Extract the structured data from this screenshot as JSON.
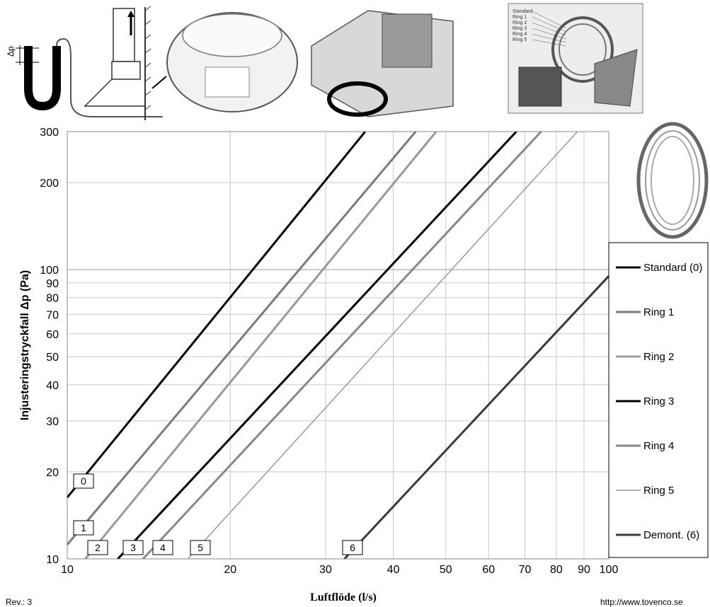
{
  "chart_data": {
    "type": "line",
    "x_scale": "log",
    "y_scale": "log",
    "xlim": [
      10,
      100
    ],
    "ylim": [
      10,
      300
    ],
    "xlabel": "Luftflöde (l/s)",
    "ylabel": "Injusteringstryckfall Δp (Pa)",
    "x_ticks": [
      10,
      20,
      30,
      40,
      50,
      60,
      70,
      80,
      90,
      100
    ],
    "y_ticks": [
      10,
      20,
      30,
      40,
      50,
      60,
      70,
      80,
      90,
      100,
      200,
      300
    ],
    "grid": true,
    "legend_position": "right",
    "series": [
      {
        "name": "Standard (0)",
        "label": "0",
        "color": "#000000",
        "width": 3,
        "points": [
          [
            10,
            16.3
          ],
          [
            35.5,
            300
          ]
        ]
      },
      {
        "name": "Ring 1",
        "label": "1",
        "color": "#7a7a7a",
        "width": 3,
        "points": [
          [
            10,
            11.2
          ],
          [
            44,
            300
          ]
        ]
      },
      {
        "name": "Ring 2",
        "label": "2",
        "color": "#999999",
        "width": 3,
        "points": [
          [
            10.8,
            10
          ],
          [
            48,
            300
          ]
        ]
      },
      {
        "name": "Ring 3",
        "label": "3",
        "color": "#000000",
        "width": 3,
        "points": [
          [
            12.4,
            10
          ],
          [
            67.5,
            300
          ]
        ]
      },
      {
        "name": "Ring 4",
        "label": "4",
        "color": "#888888",
        "width": 3,
        "points": [
          [
            13.8,
            10
          ],
          [
            75,
            300
          ]
        ]
      },
      {
        "name": "Ring 5",
        "label": "5",
        "color": "#9a9a9a",
        "width": 1.5,
        "points": [
          [
            16.7,
            10
          ],
          [
            87.5,
            300
          ]
        ]
      },
      {
        "name": "Demont. (6)",
        "label": "6",
        "color": "#3a3a3a",
        "width": 3,
        "points": [
          [
            32.5,
            10
          ],
          [
            100,
            95
          ]
        ]
      }
    ]
  },
  "illustrations": {
    "manometer_symbol": "Δp",
    "ring_labels": [
      "Standard",
      "Ring 1",
      "Ring 2",
      "Ring 3",
      "Ring 4",
      "Ring 5"
    ]
  },
  "footer": {
    "rev": "Rev.: 3",
    "url": "http://www.tovenco.se"
  }
}
